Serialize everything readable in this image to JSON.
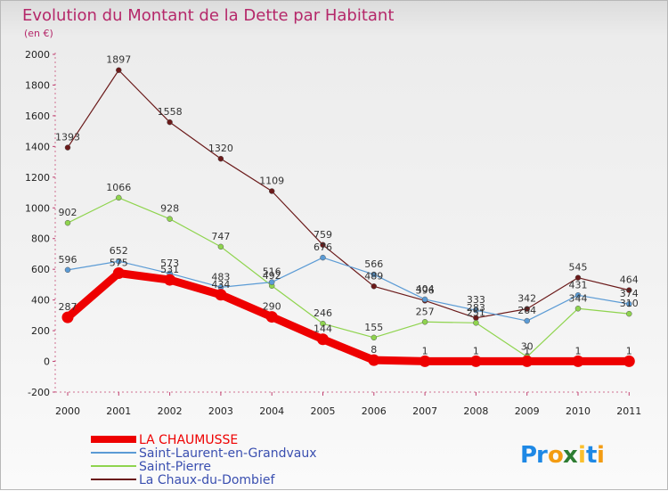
{
  "chart_data": {
    "type": "line",
    "title": "Evolution du Montant de la Dette par Habitant",
    "subtitle": "(en €)",
    "x": [
      "2000",
      "2001",
      "2002",
      "2003",
      "2004",
      "2005",
      "2006",
      "2007",
      "2008",
      "2009",
      "2010",
      "2011"
    ],
    "ylim": [
      -200,
      2000
    ],
    "yticks": [
      -200,
      0,
      200,
      400,
      600,
      800,
      1000,
      1200,
      1400,
      1600,
      1800,
      2000
    ],
    "grid": false,
    "legend_position": "bottom-left",
    "series": [
      {
        "name": "LA CHAUMUSSE",
        "color": "#ee0000",
        "values": [
          287,
          575,
          531,
          434,
          290,
          144,
          8,
          1,
          1,
          1,
          1,
          1
        ]
      },
      {
        "name": "Saint-Laurent-en-Grandvaux",
        "color": "#5b9bd5",
        "values": [
          596,
          652,
          573,
          483,
          516,
          676,
          566,
          404,
          333,
          264,
          431,
          374
        ]
      },
      {
        "name": "Saint-Pierre",
        "color": "#8fd44e",
        "values": [
          902,
          1066,
          928,
          747,
          492,
          246,
          155,
          257,
          251,
          30,
          344,
          310
        ]
      },
      {
        "name": "La Chaux-du-Dombief",
        "color": "#6b1a1a",
        "values": [
          1393,
          1897,
          1558,
          1320,
          1109,
          759,
          489,
          396,
          283,
          342,
          545,
          464
        ]
      }
    ]
  },
  "brand": {
    "name": "Proxiti",
    "letters": [
      "P",
      "r",
      "o",
      "x",
      "i",
      "t",
      "i"
    ],
    "colors": [
      "#1e88e5",
      "#1e88e5",
      "#f39c12",
      "#2e7d32",
      "#fbc02d",
      "#1e88e5",
      "#f39c12"
    ]
  }
}
